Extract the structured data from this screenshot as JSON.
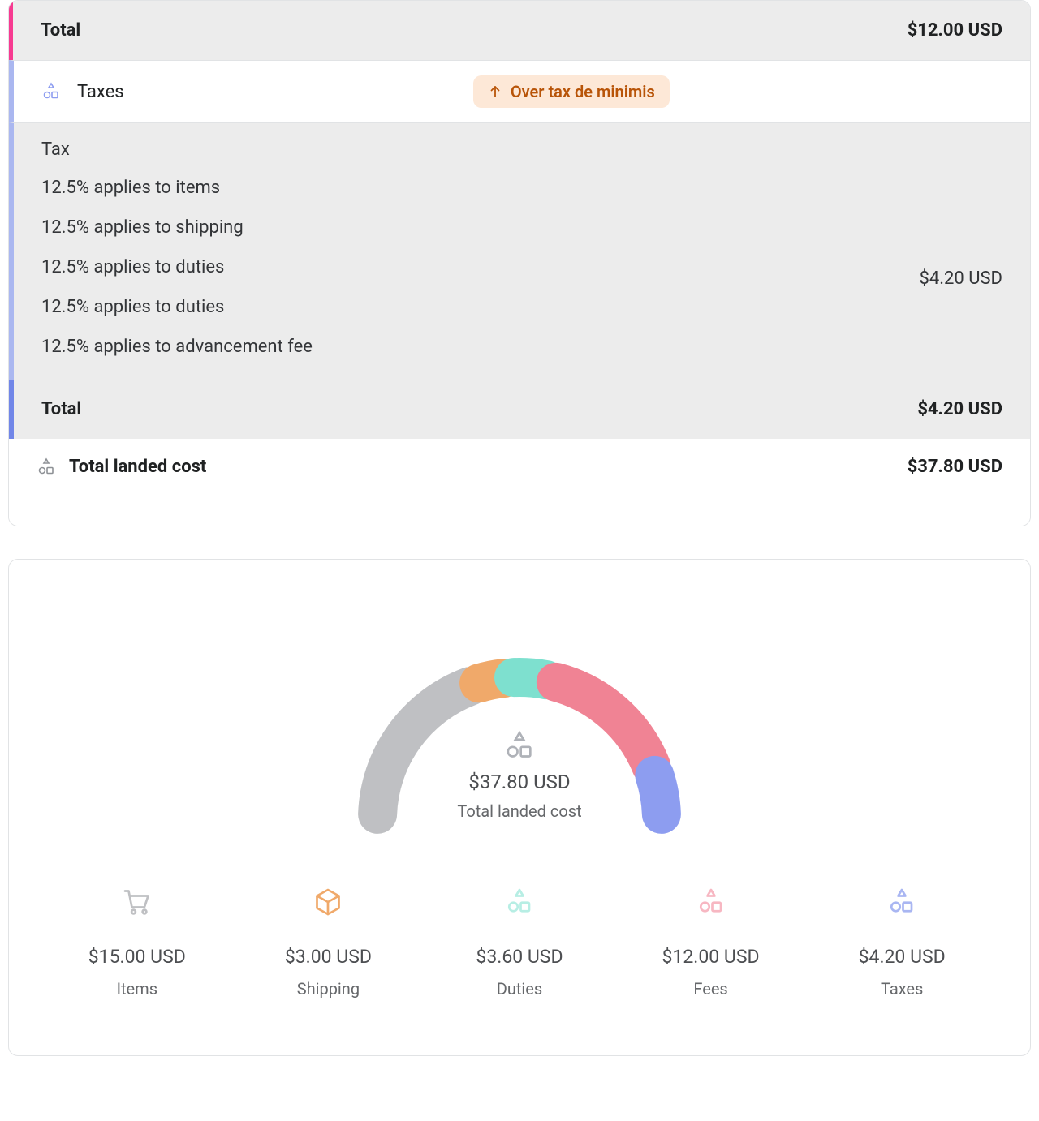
{
  "top_total": {
    "label": "Total",
    "value": "$12.00 USD",
    "accent_color": "#f73a91"
  },
  "taxes_section": {
    "title": "Taxes",
    "badge_text": "Over tax de minimis",
    "badge_bg": "#fde8d7",
    "badge_color": "#b85408",
    "accent_color": "#aab7f0"
  },
  "tax_details": {
    "heading": "Tax",
    "lines": [
      "12.5% applies to items",
      "12.5% applies to shipping",
      "12.5% applies to duties",
      "12.5% applies to duties",
      "12.5% applies to advancement fee"
    ],
    "subtotal_value": "$4.20 USD"
  },
  "tax_total": {
    "label": "Total",
    "value": "$4.20 USD",
    "accent_color": "#7186e8"
  },
  "landed": {
    "label": "Total landed cost",
    "value": "$37.80 USD"
  },
  "chart": {
    "type": "semi-donut",
    "center_value": "$37.80 USD",
    "center_label": "Total landed cost",
    "background": "#ffffff",
    "stroke_width": 48,
    "gap_deg": 4,
    "segments": [
      {
        "key": "items",
        "value": 15.0,
        "color": "#bfc0c3",
        "label": "Items",
        "display": "$15.00 USD",
        "icon": "cart",
        "icon_color": "#bfc0c3"
      },
      {
        "key": "shipping",
        "value": 3.0,
        "color": "#f0a96a",
        "label": "Shipping",
        "display": "$3.00 USD",
        "icon": "box",
        "icon_color": "#f0a96a"
      },
      {
        "key": "duties",
        "value": 3.6,
        "color": "#7ee0cf",
        "label": "Duties",
        "display": "$3.60 USD",
        "icon": "shapes",
        "icon_color": "#b7eee4"
      },
      {
        "key": "fees",
        "value": 12.0,
        "color": "#f08394",
        "label": "Fees",
        "display": "$12.00 USD",
        "icon": "shapes",
        "icon_color": "#f7b7c2"
      },
      {
        "key": "taxes",
        "value": 4.2,
        "color": "#8d9df0",
        "label": "Taxes",
        "display": "$4.20 USD",
        "icon": "shapes",
        "icon_color": "#a9b6f2"
      }
    ]
  }
}
